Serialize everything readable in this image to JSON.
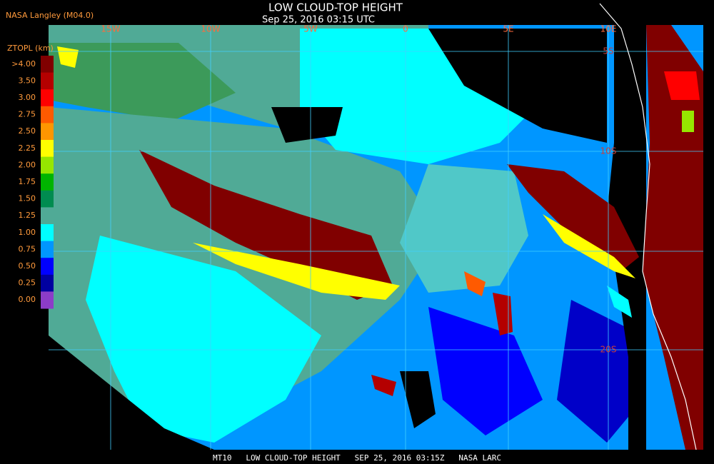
{
  "header": {
    "source": "NASA Langley (M04.0)",
    "title": "LOW CLOUD-TOP HEIGHT",
    "time": "Sep 25, 2016 03:15 UTC"
  },
  "legend": {
    "title": "ZTOPL (km)",
    "items": [
      {
        "label": ">4.00",
        "color": "#800000"
      },
      {
        "label": "3.50",
        "color": "#b40000"
      },
      {
        "label": "3.00",
        "color": "#ff0000"
      },
      {
        "label": "2.75",
        "color": "#ff5a00"
      },
      {
        "label": "2.50",
        "color": "#ff9600"
      },
      {
        "label": "2.25",
        "color": "#ffff00"
      },
      {
        "label": "2.00",
        "color": "#96e600"
      },
      {
        "label": "1.75",
        "color": "#00b400"
      },
      {
        "label": "1.50",
        "color": "#008c50"
      },
      {
        "label": "1.25",
        "color": "#50aa96"
      },
      {
        "label": "1.00",
        "color": "#00ffff"
      },
      {
        "label": "0.75",
        "color": "#0096ff"
      },
      {
        "label": "0.50",
        "color": "#0000ff"
      },
      {
        "label": "0.25",
        "color": "#0000a0"
      },
      {
        "label": "0.00",
        "color": "#8c3cc8"
      }
    ]
  },
  "map": {
    "longitude_labels": [
      "15W",
      "10W",
      "5W",
      "0",
      "5E",
      "10E"
    ],
    "latitude_labels": [
      "5S",
      "10S",
      "20S"
    ]
  },
  "footer": "MT10   LOW CLOUD-TOP HEIGHT   SEP 25, 2016 03:15Z   NASA LARC"
}
